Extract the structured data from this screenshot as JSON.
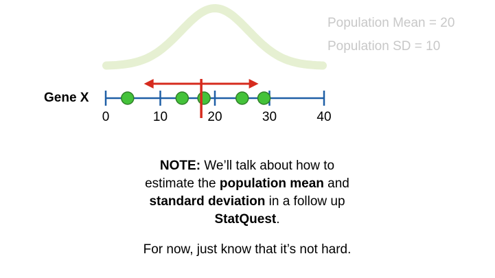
{
  "population": {
    "mean_text": "Population Mean = 20",
    "sd_text": "Population SD = 10",
    "mean": 20,
    "sd": 10
  },
  "axis": {
    "label": "Gene X",
    "min": 0,
    "max": 40,
    "ticks": [
      0,
      10,
      20,
      30,
      40
    ],
    "tick_labels": [
      "0",
      "10",
      "20",
      "30",
      "40"
    ]
  },
  "sample": {
    "points": [
      4,
      14,
      18,
      25,
      29
    ],
    "estimated_mean": 17.5,
    "spread_range": [
      7,
      28
    ]
  },
  "colors": {
    "curve": "#e6f0d2",
    "axis": "#1f5fa6",
    "point_fill": "#44c23a",
    "point_stroke": "#2f7f28",
    "mean_line": "#d62b1e",
    "stat_text": "#c8c8c8"
  },
  "note": {
    "lead": "NOTE:",
    "t1": " We’ll talk about how to",
    "t2": "estimate the ",
    "b2": "population mean",
    "t3": " and",
    "b3": "standard deviation",
    "t4": " in a follow up",
    "b4": "StatQuest",
    "t5": ".",
    "closing": "For now, just know that it’s not hard."
  }
}
